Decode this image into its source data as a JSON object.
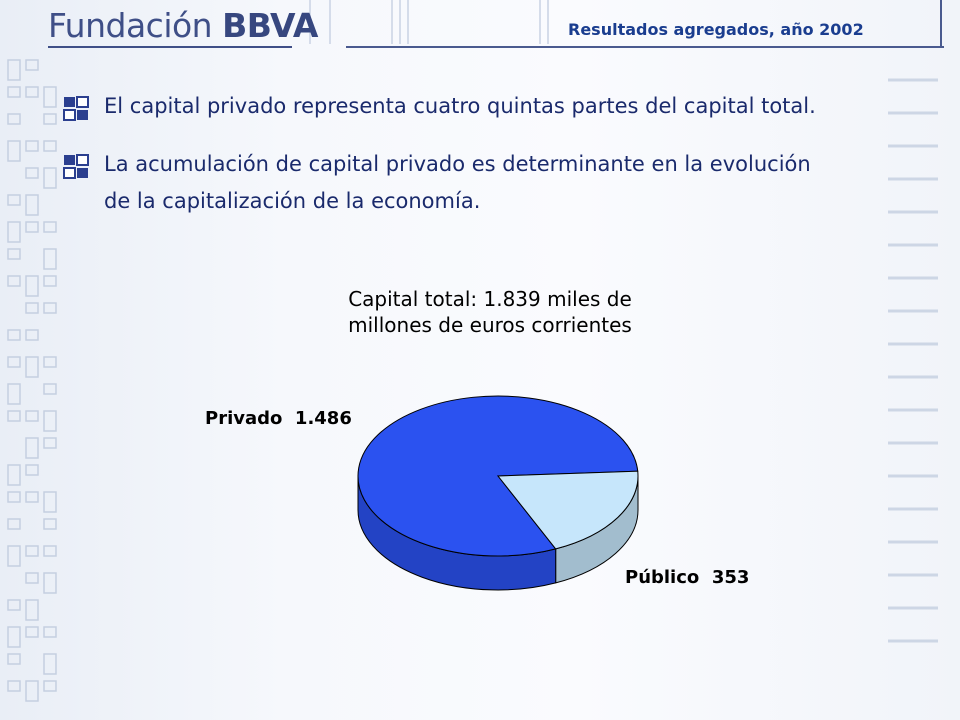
{
  "header": {
    "logo_text": "Fundación",
    "logo_brand": "BBVA",
    "title": "Resultados agregados, año 2002"
  },
  "bullets": [
    {
      "lines": [
        "El capital privado representa cuatro quintas partes del capital total."
      ]
    },
    {
      "lines": [
        "La acumulación de capital privado es determinante en la evolución",
        "de la capitalización de la economía."
      ]
    }
  ],
  "chart_data": {
    "type": "pie",
    "title": "Capital total: 1.839 miles de millones de euros corrientes",
    "title_lines": [
      "Capital total: 1.839 miles de",
      "millones de euros corrientes"
    ],
    "labels": [
      "Privado",
      "Público"
    ],
    "values": [
      1486,
      353
    ],
    "value_labels": [
      "1.486",
      "353"
    ],
    "colors": [
      "#2b52f0",
      "#c6e6fb"
    ],
    "legend": "none",
    "style": "3d"
  },
  "colors": {
    "text": "#1a2a6c",
    "header": "#1a3d8f",
    "logo": "#3f4f87"
  }
}
